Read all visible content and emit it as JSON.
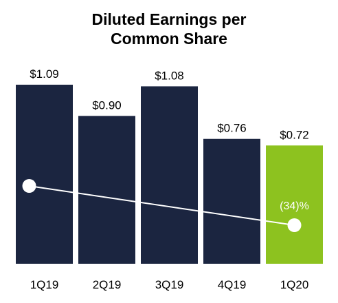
{
  "chart_data": {
    "type": "bar",
    "title_lines": [
      "Diluted Earnings per",
      "Common Share"
    ],
    "categories": [
      "1Q19",
      "2Q19",
      "3Q19",
      "4Q19",
      "1Q20"
    ],
    "values": [
      1.09,
      0.9,
      1.08,
      0.76,
      0.72
    ],
    "value_labels": [
      "$1.09",
      "$0.90",
      "$1.08",
      "$0.76",
      "$0.72"
    ],
    "xlabel": "",
    "ylabel": "",
    "ylim": [
      0,
      1.09
    ],
    "grid": false,
    "colors": {
      "bar": "#1b2540",
      "highlight_bar": "#8dc21f",
      "trend_line": "#ffffff"
    },
    "highlight_index": 4,
    "trend": {
      "from_category": "1Q19",
      "to_category": "1Q20",
      "label": "(34)%"
    }
  }
}
